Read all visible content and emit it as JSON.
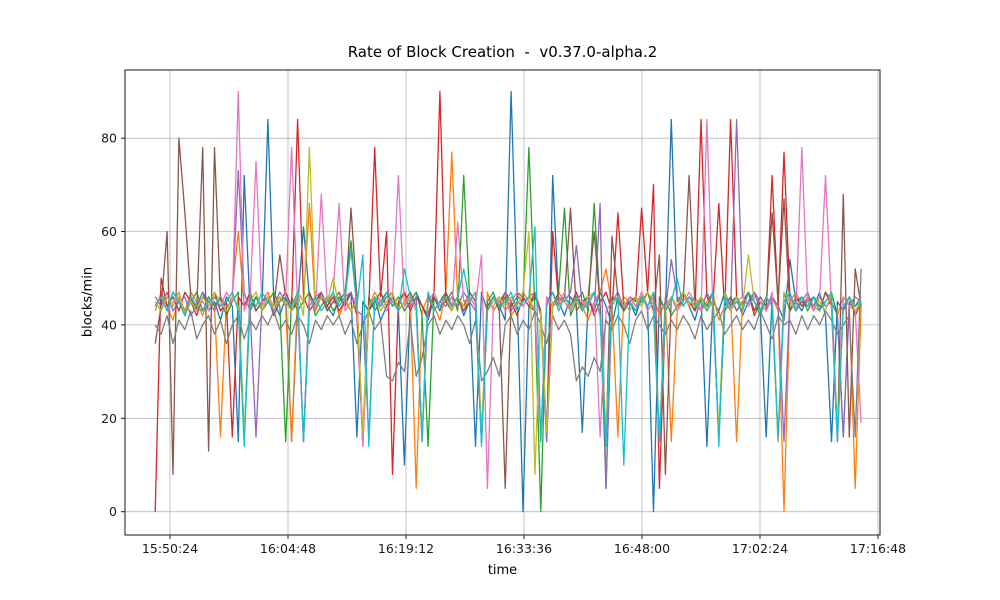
{
  "chart_data": {
    "type": "line",
    "title": "Rate of Block Creation  -  v0.37.0-alpha.2",
    "xlabel": "time",
    "ylabel": "blocks/min",
    "grid": true,
    "legend": "none",
    "x_tick_labels": [
      "15:50:24",
      "16:04:48",
      "16:19:12",
      "16:33:36",
      "16:48:00",
      "17:02:24",
      "17:16:48"
    ],
    "y_ticks": [
      0,
      20,
      40,
      60,
      80
    ],
    "ylim": [
      -5,
      94.6
    ],
    "series": [
      {
        "name": "blue",
        "color": "#1f77b4",
        "values": [
          44,
          46,
          43,
          47,
          45,
          42,
          46,
          44,
          47,
          43,
          45,
          41,
          46,
          44,
          15,
          72,
          43,
          46,
          44,
          84,
          45,
          42,
          46,
          15,
          44,
          61,
          46,
          43,
          47,
          44,
          42,
          46,
          44,
          47,
          16,
          45,
          43,
          46,
          41,
          44,
          46,
          43,
          10,
          45,
          47,
          44,
          41,
          46,
          43,
          47,
          44,
          46,
          42,
          45,
          14,
          47,
          43,
          46,
          44,
          41,
          90,
          47,
          0,
          44,
          46,
          43,
          15,
          72,
          45,
          42,
          46,
          44,
          17,
          45,
          43,
          47,
          44,
          40,
          46,
          43,
          45,
          42,
          46,
          44,
          0,
          46,
          43,
          84,
          45,
          47,
          44,
          41,
          46,
          14,
          45,
          43,
          47,
          44,
          46,
          42,
          45,
          47,
          43,
          16,
          46,
          44,
          41,
          54,
          45,
          43,
          46,
          44,
          47,
          42,
          15,
          45,
          43,
          46,
          44,
          45
        ]
      },
      {
        "name": "orange",
        "color": "#ff7f0e",
        "values": [
          43,
          47,
          44,
          41,
          46,
          43,
          47,
          45,
          42,
          46,
          44,
          16,
          45,
          47,
          60,
          44,
          46,
          43,
          45,
          47,
          43,
          46,
          44,
          15,
          47,
          45,
          66,
          43,
          46,
          44,
          47,
          42,
          45,
          43,
          46,
          14,
          44,
          47,
          45,
          43,
          46,
          44,
          47,
          45,
          5,
          43,
          46,
          44,
          41,
          47,
          77,
          45,
          43,
          46,
          44,
          15,
          47,
          43,
          45,
          46,
          42,
          44,
          47,
          45,
          43,
          16,
          46,
          44,
          47,
          45,
          43,
          46,
          44,
          41,
          45,
          47,
          52,
          44,
          16,
          46,
          45,
          43,
          47,
          44,
          46,
          42,
          45,
          15,
          43,
          47,
          44,
          46,
          43,
          45,
          47,
          41,
          44,
          46,
          15,
          45,
          47,
          43,
          45,
          44,
          46,
          43,
          0,
          45,
          47,
          44,
          46,
          44,
          43,
          47,
          45,
          42,
          46,
          44,
          5,
          44
        ]
      },
      {
        "name": "green",
        "color": "#2ca02c",
        "values": [
          45,
          43,
          46,
          44,
          47,
          42,
          45,
          47,
          43,
          46,
          44,
          46,
          42,
          45,
          47,
          16,
          44,
          46,
          43,
          45,
          47,
          44,
          15,
          46,
          43,
          45,
          47,
          42,
          44,
          46,
          43,
          45,
          47,
          58,
          44,
          16,
          46,
          43,
          45,
          47,
          44,
          46,
          43,
          45,
          47,
          42,
          14,
          46,
          44,
          45,
          47,
          43,
          72,
          46,
          44,
          15,
          45,
          47,
          43,
          46,
          44,
          46,
          45,
          78,
          43,
          0,
          46,
          44,
          47,
          65,
          42,
          45,
          47,
          43,
          66,
          44,
          5,
          46,
          45,
          43,
          46,
          44,
          45,
          47,
          43,
          15,
          46,
          42,
          44,
          47,
          45,
          43,
          46,
          44,
          47,
          16,
          43,
          45,
          46,
          44,
          47,
          45,
          42,
          46,
          44,
          15,
          47,
          43,
          45,
          46,
          43,
          46,
          44,
          45,
          47,
          42,
          16,
          45,
          44,
          46
        ]
      },
      {
        "name": "red",
        "color": "#d62728",
        "values": [
          0,
          50,
          44,
          46,
          43,
          47,
          45,
          42,
          46,
          44,
          47,
          43,
          45,
          16,
          46,
          44,
          47,
          43,
          45,
          46,
          42,
          45,
          47,
          44,
          84,
          46,
          43,
          45,
          47,
          44,
          46,
          43,
          45,
          47,
          42,
          15,
          44,
          78,
          46,
          60,
          8,
          45,
          47,
          43,
          46,
          44,
          42,
          47,
          90,
          45,
          43,
          46,
          44,
          47,
          45,
          15,
          43,
          46,
          44,
          47,
          45,
          42,
          46,
          44,
          47,
          43,
          16,
          60,
          45,
          46,
          44,
          47,
          43,
          46,
          42,
          45,
          47,
          43,
          64,
          44,
          46,
          45,
          65,
          47,
          70,
          5,
          43,
          46,
          44,
          47,
          45,
          43,
          84,
          46,
          44,
          66,
          43,
          84,
          46,
          44,
          47,
          42,
          45,
          43,
          72,
          44,
          77,
          46,
          43,
          45,
          44,
          46,
          43,
          47,
          45,
          16,
          44,
          46,
          42,
          45
        ]
      },
      {
        "name": "purple",
        "color": "#9467bd",
        "values": [
          46,
          44,
          47,
          43,
          45,
          46,
          42,
          44,
          47,
          45,
          43,
          46,
          44,
          45,
          73,
          47,
          43,
          16,
          45,
          46,
          44,
          47,
          45,
          43,
          46,
          15,
          44,
          46,
          47,
          43,
          45,
          44,
          46,
          47,
          43,
          42,
          16,
          45,
          44,
          46,
          47,
          43,
          45,
          44,
          46,
          15,
          47,
          43,
          45,
          44,
          46,
          44,
          47,
          45,
          43,
          16,
          44,
          46,
          45,
          47,
          43,
          45,
          44,
          46,
          47,
          42,
          15,
          44,
          46,
          45,
          47,
          57,
          44,
          46,
          43,
          66,
          5,
          45,
          47,
          44,
          45,
          43,
          46,
          44,
          47,
          15,
          43,
          54,
          46,
          44,
          46,
          45,
          43,
          47,
          44,
          16,
          45,
          43,
          84,
          46,
          44,
          47,
          45,
          43,
          46,
          44,
          15,
          46,
          43,
          45,
          47,
          43,
          46,
          44,
          45,
          42,
          16,
          44,
          46,
          45
        ]
      },
      {
        "name": "brown",
        "color": "#8c564b",
        "values": [
          36,
          44,
          60,
          8,
          80,
          64,
          46,
          43,
          78,
          13,
          78,
          45,
          43,
          46,
          44,
          16,
          47,
          43,
          45,
          46,
          44,
          55,
          46,
          43,
          45,
          15,
          47,
          44,
          46,
          43,
          45,
          47,
          44,
          65,
          46,
          15,
          43,
          45,
          47,
          44,
          46,
          43,
          45,
          47,
          44,
          16,
          46,
          43,
          45,
          47,
          44,
          46,
          43,
          45,
          47,
          15,
          44,
          46,
          43,
          5,
          45,
          47,
          46,
          44,
          43,
          16,
          45,
          47,
          44,
          46,
          65,
          43,
          45,
          46,
          60,
          44,
          15,
          59,
          46,
          43,
          45,
          46,
          44,
          47,
          43,
          55,
          8,
          46,
          44,
          45,
          72,
          44,
          46,
          43,
          45,
          16,
          44,
          46,
          43,
          45,
          47,
          43,
          46,
          44,
          64,
          45,
          67,
          43,
          46,
          44,
          45,
          46,
          43,
          47,
          44,
          15,
          68,
          16,
          52,
          44
        ]
      },
      {
        "name": "pink",
        "color": "#e377c2",
        "values": [
          44,
          46,
          43,
          45,
          47,
          42,
          46,
          44,
          45,
          43,
          46,
          44,
          47,
          45,
          90,
          43,
          46,
          75,
          44,
          46,
          43,
          45,
          46,
          78,
          44,
          15,
          46,
          43,
          68,
          45,
          47,
          66,
          43,
          45,
          46,
          14,
          44,
          46,
          45,
          43,
          46,
          72,
          44,
          46,
          43,
          15,
          45,
          47,
          44,
          46,
          43,
          62,
          45,
          46,
          44,
          55,
          5,
          44,
          46,
          43,
          45,
          47,
          44,
          46,
          43,
          15,
          46,
          44,
          45,
          47,
          43,
          46,
          45,
          44,
          47,
          16,
          43,
          45,
          46,
          44,
          46,
          44,
          47,
          43,
          45,
          15,
          44,
          46,
          43,
          45,
          47,
          45,
          43,
          84,
          44,
          16,
          46,
          43,
          45,
          46,
          44,
          46,
          45,
          43,
          47,
          15,
          44,
          46,
          43,
          78,
          45,
          43,
          46,
          72,
          44,
          15,
          46,
          44,
          43,
          19
        ]
      },
      {
        "name": "gray",
        "color": "#7f7f7f",
        "values": [
          40,
          38,
          42,
          36,
          41,
          39,
          43,
          37,
          40,
          42,
          38,
          41,
          36,
          40,
          42,
          37,
          41,
          39,
          42,
          40,
          43,
          39,
          41,
          38,
          42,
          40,
          36,
          41,
          39,
          42,
          40,
          42,
          38,
          41,
          36,
          40,
          43,
          39,
          41,
          29,
          28,
          32,
          30,
          41,
          29,
          33,
          40,
          42,
          38,
          41,
          39,
          42,
          40,
          36,
          41,
          28,
          30,
          33,
          29,
          40,
          42,
          38,
          41,
          39,
          43,
          40,
          36,
          42,
          39,
          41,
          38,
          28,
          31,
          29,
          33,
          30,
          41,
          39,
          42,
          40,
          36,
          41,
          43,
          39,
          42,
          40,
          38,
          41,
          39,
          42,
          40,
          37,
          42,
          39,
          41,
          43,
          38,
          40,
          42,
          39,
          41,
          39,
          43,
          40,
          37,
          42,
          40,
          41,
          38,
          42,
          39,
          42,
          40,
          43,
          41,
          38,
          40,
          42,
          16,
          52
        ]
      },
      {
        "name": "olive",
        "color": "#bcbd22",
        "values": [
          45,
          43,
          46,
          44,
          47,
          42,
          45,
          43,
          46,
          44,
          47,
          45,
          43,
          46,
          44,
          17,
          45,
          47,
          43,
          46,
          44,
          46,
          45,
          43,
          47,
          42,
          78,
          44,
          46,
          45,
          50,
          44,
          46,
          43,
          45,
          17,
          44,
          46,
          43,
          45,
          47,
          43,
          45,
          46,
          44,
          16,
          47,
          43,
          45,
          46,
          43,
          46,
          44,
          45,
          47,
          17,
          43,
          45,
          46,
          44,
          46,
          44,
          47,
          60,
          8,
          43,
          17,
          45,
          44,
          46,
          44,
          45,
          43,
          46,
          47,
          42,
          17,
          44,
          46,
          45,
          43,
          46,
          44,
          47,
          45,
          16,
          43,
          46,
          44,
          47,
          45,
          44,
          46,
          43,
          45,
          17,
          47,
          43,
          46,
          44,
          55,
          45,
          43,
          46,
          44,
          15,
          47,
          45,
          43,
          46,
          44,
          46,
          45,
          43,
          47,
          17,
          44,
          46,
          43,
          45
        ]
      },
      {
        "name": "cyan",
        "color": "#17becf",
        "values": [
          44,
          46,
          43,
          47,
          45,
          42,
          46,
          44,
          43,
          45,
          46,
          44,
          45,
          47,
          43,
          14,
          46,
          44,
          47,
          45,
          43,
          45,
          46,
          44,
          47,
          15,
          44,
          46,
          43,
          45,
          47,
          44,
          46,
          56,
          44,
          55,
          14,
          46,
          44,
          47,
          45,
          43,
          52,
          46,
          44,
          15,
          47,
          43,
          45,
          46,
          44,
          46,
          52,
          45,
          47,
          14,
          43,
          46,
          44,
          45,
          47,
          43,
          45,
          46,
          61,
          15,
          44,
          47,
          43,
          46,
          44,
          46,
          43,
          45,
          47,
          42,
          14,
          45,
          46,
          10,
          45,
          43,
          46,
          44,
          47,
          15,
          43,
          45,
          50,
          44,
          46,
          44,
          45,
          43,
          47,
          14,
          46,
          44,
          45,
          43,
          47,
          45,
          43,
          46,
          44,
          16,
          45,
          47,
          43,
          46,
          44,
          46,
          43,
          45,
          47,
          15,
          44,
          46,
          44,
          45
        ]
      }
    ]
  }
}
